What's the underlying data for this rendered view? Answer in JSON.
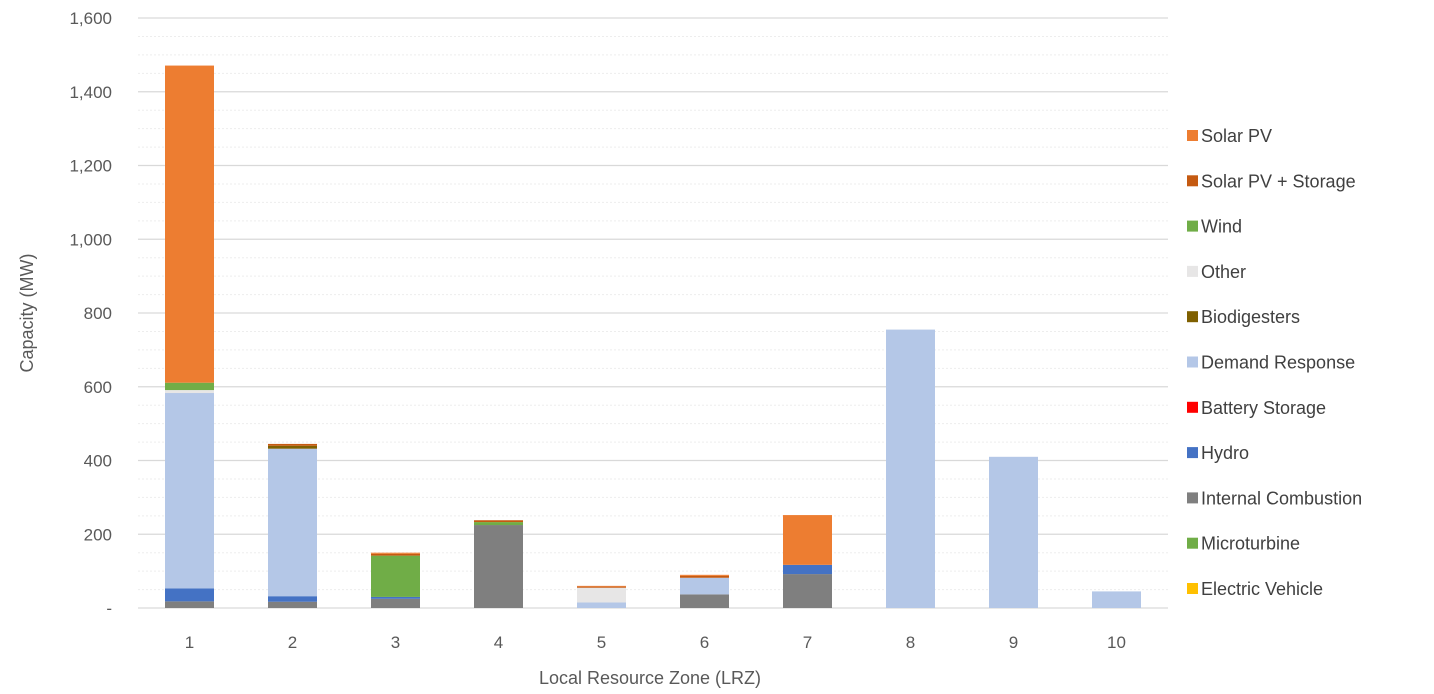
{
  "chart_data": {
    "type": "bar",
    "stacked": true,
    "title": "",
    "xlabel": "Local Resource Zone (LRZ)",
    "ylabel": "Capacity (MW)",
    "ylim": [
      0,
      1600
    ],
    "yticks": [
      0,
      200,
      400,
      600,
      800,
      1000,
      1200,
      1400,
      1600
    ],
    "ytick_labels": [
      "-",
      "200",
      "400",
      "600",
      "800",
      "1,000",
      "1,200",
      "1,400",
      "1,600"
    ],
    "grid": true,
    "legend_position": "right",
    "categories": [
      "1",
      "2",
      "3",
      "4",
      "5",
      "6",
      "7",
      "8",
      "9",
      "10"
    ],
    "series": [
      {
        "name": "Electric Vehicle",
        "color": "#FFC000",
        "values": [
          0,
          0,
          0,
          0,
          0,
          0,
          0,
          0,
          0,
          0
        ]
      },
      {
        "name": "Microturbine",
        "color": "#70AD47",
        "values": [
          0,
          0,
          0,
          0,
          0,
          0,
          0,
          0,
          0,
          0
        ]
      },
      {
        "name": "Internal Combustion",
        "color": "#7F7F7F",
        "values": [
          18,
          17,
          25,
          225,
          0,
          37,
          92,
          0,
          0,
          0
        ]
      },
      {
        "name": "Hydro",
        "color": "#4472C4",
        "values": [
          35,
          15,
          5,
          0,
          0,
          0,
          25,
          0,
          0,
          0
        ]
      },
      {
        "name": "Battery Storage",
        "color": "#FF0000",
        "values": [
          0,
          0,
          0,
          0,
          0,
          0,
          0,
          0,
          0,
          0
        ]
      },
      {
        "name": "Demand Response",
        "color": "#B4C7E7",
        "values": [
          530,
          400,
          0,
          0,
          15,
          45,
          0,
          755,
          410,
          45
        ]
      },
      {
        "name": "Biodigesters",
        "color": "#7F6000",
        "values": [
          0,
          8,
          0,
          0,
          0,
          0,
          0,
          0,
          0,
          0
        ]
      },
      {
        "name": "Other",
        "color": "#E7E6E6",
        "values": [
          8,
          0,
          0,
          0,
          40,
          0,
          0,
          0,
          0,
          0
        ]
      },
      {
        "name": "Wind",
        "color": "#70AD47",
        "values": [
          20,
          0,
          112,
          8,
          0,
          0,
          0,
          0,
          0,
          0
        ]
      },
      {
        "name": "Solar PV + Storage",
        "color": "#C55A11",
        "values": [
          0,
          5,
          5,
          5,
          3,
          5,
          0,
          0,
          0,
          0
        ]
      },
      {
        "name": "Solar PV",
        "color": "#ED7D31",
        "values": [
          860,
          0,
          3,
          0,
          2,
          3,
          135,
          0,
          0,
          0
        ]
      }
    ],
    "legend_order": [
      "Solar PV",
      "Solar PV + Storage",
      "Wind",
      "Other",
      "Biodigesters",
      "Demand Response",
      "Battery Storage",
      "Hydro",
      "Internal Combustion",
      "Microturbine",
      "Electric Vehicle"
    ]
  }
}
